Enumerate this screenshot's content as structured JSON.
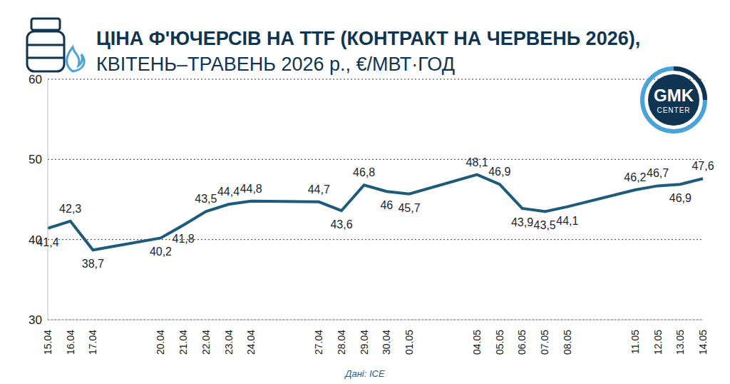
{
  "chart_data": {
    "type": "line",
    "title": "ЦІНА Ф'ЮЧЕРСІВ НА TTF (КОНТРАКТ НА ЧЕРВЕНЬ 2026),",
    "subtitle": "КВІТЕНЬ–ТРАВЕНЬ 2026 р., €/МВТ·ГОД",
    "source": "Дані: ICE",
    "logo": [
      "GMK",
      "CENTER"
    ],
    "categories": [
      "15.04",
      "16.04",
      "17.04",
      null,
      null,
      "20.04",
      "21.04",
      "22.04",
      "23.04",
      "24.04",
      null,
      null,
      "27.04",
      "28.04",
      "29.04",
      "30.04",
      "01.05",
      null,
      null,
      "04.05",
      "05.05",
      "06.05",
      "07.05",
      "08.05",
      null,
      null,
      "11.05",
      "12.05",
      "13.05",
      "14.05"
    ],
    "values": [
      41.4,
      42.3,
      38.7,
      null,
      null,
      40.2,
      41.8,
      43.5,
      44.4,
      44.8,
      null,
      null,
      44.7,
      43.6,
      46.8,
      46,
      45.7,
      null,
      null,
      48.1,
      46.9,
      43.9,
      43.5,
      44.1,
      null,
      null,
      46.2,
      46.7,
      46.9,
      47.6
    ],
    "value_labels": [
      "41,4",
      "42,3",
      "38,7",
      null,
      null,
      "40,2",
      "41,8",
      "43,5",
      "44,4",
      "44,8",
      null,
      null,
      "44,7",
      "43,6",
      "46,8",
      "46",
      "45,7",
      null,
      null,
      "48,1",
      "46,9",
      "43,9",
      "43,5",
      "44,1",
      null,
      null,
      "46,2",
      "46,7",
      "46,9",
      "47,6"
    ],
    "color": "#1d5b7c",
    "ylim": [
      30,
      60
    ],
    "yticks": [
      30,
      40,
      50,
      60
    ],
    "grid": true,
    "data_labels": true
  }
}
